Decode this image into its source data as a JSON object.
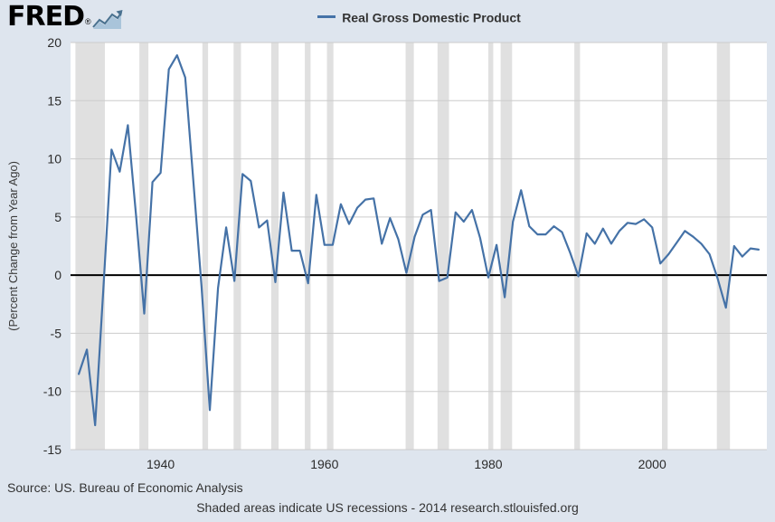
{
  "header": {
    "logo_text": "FRED",
    "logo_reg": "®"
  },
  "legend": {
    "label": "Real Gross Domestic Product",
    "swatch_color": "#4572a7"
  },
  "footer": {
    "source": "Source: US. Bureau of Economic Analysis",
    "note": "Shaded areas indicate US recessions - 2014 research.stlouisfed.org"
  },
  "chart_data": {
    "type": "line",
    "title": "Real Gross Domestic Product",
    "ylabel": "(Percent Change from Year Ago)",
    "xlabel": "",
    "ylim": [
      -15,
      20
    ],
    "xlim": [
      1929,
      2014
    ],
    "y_ticks": [
      20,
      15,
      10,
      5,
      0,
      -5,
      -10,
      -15
    ],
    "x_ticks": [
      1940,
      1960,
      1980,
      2000
    ],
    "x_start_year": 1930,
    "grid": true,
    "legend_position": "top",
    "series": [
      {
        "name": "Real Gross Domestic Product",
        "values": [
          -8.5,
          -6.4,
          -12.9,
          -1.3,
          10.8,
          8.9,
          12.9,
          5.1,
          -3.3,
          8.0,
          8.8,
          17.7,
          18.9,
          17.0,
          8.0,
          -1.0,
          -11.6,
          -1.1,
          4.1,
          -0.5,
          8.7,
          8.1,
          4.1,
          4.7,
          -0.6,
          7.1,
          2.1,
          2.1,
          -0.7,
          6.9,
          2.6,
          2.6,
          6.1,
          4.4,
          5.8,
          6.5,
          6.6,
          2.7,
          4.9,
          3.1,
          0.2,
          3.3,
          5.2,
          5.6,
          -0.5,
          -0.2,
          5.4,
          4.6,
          5.6,
          3.2,
          -0.2,
          2.6,
          -1.9,
          4.6,
          7.3,
          4.2,
          3.5,
          3.5,
          4.2,
          3.7,
          1.9,
          -0.1,
          3.6,
          2.7,
          4.0,
          2.7,
          3.8,
          4.5,
          4.4,
          4.8,
          4.1,
          1.0,
          1.8,
          2.8,
          3.8,
          3.3,
          2.7,
          1.8,
          -0.3,
          -2.8,
          2.5,
          1.6,
          2.3,
          2.2
        ]
      }
    ],
    "recessions": [
      [
        1929.6,
        1933.2
      ],
      [
        1937.4,
        1938.5
      ],
      [
        1945.1,
        1945.8
      ],
      [
        1948.9,
        1949.8
      ],
      [
        1953.5,
        1954.4
      ],
      [
        1957.6,
        1958.3
      ],
      [
        1960.3,
        1961.1
      ],
      [
        1969.9,
        1970.9
      ],
      [
        1973.8,
        1975.2
      ],
      [
        1980.0,
        1980.6
      ],
      [
        1981.5,
        1982.9
      ],
      [
        1990.5,
        1991.2
      ],
      [
        2001.2,
        2001.9
      ],
      [
        2007.9,
        2009.5
      ]
    ],
    "colors": {
      "line": "#4572a7",
      "recession": "#e0e0e0",
      "grid": "#cccccc",
      "zero_line": "#000000",
      "background": "#dee5ee",
      "plot_background": "#ffffff"
    }
  }
}
